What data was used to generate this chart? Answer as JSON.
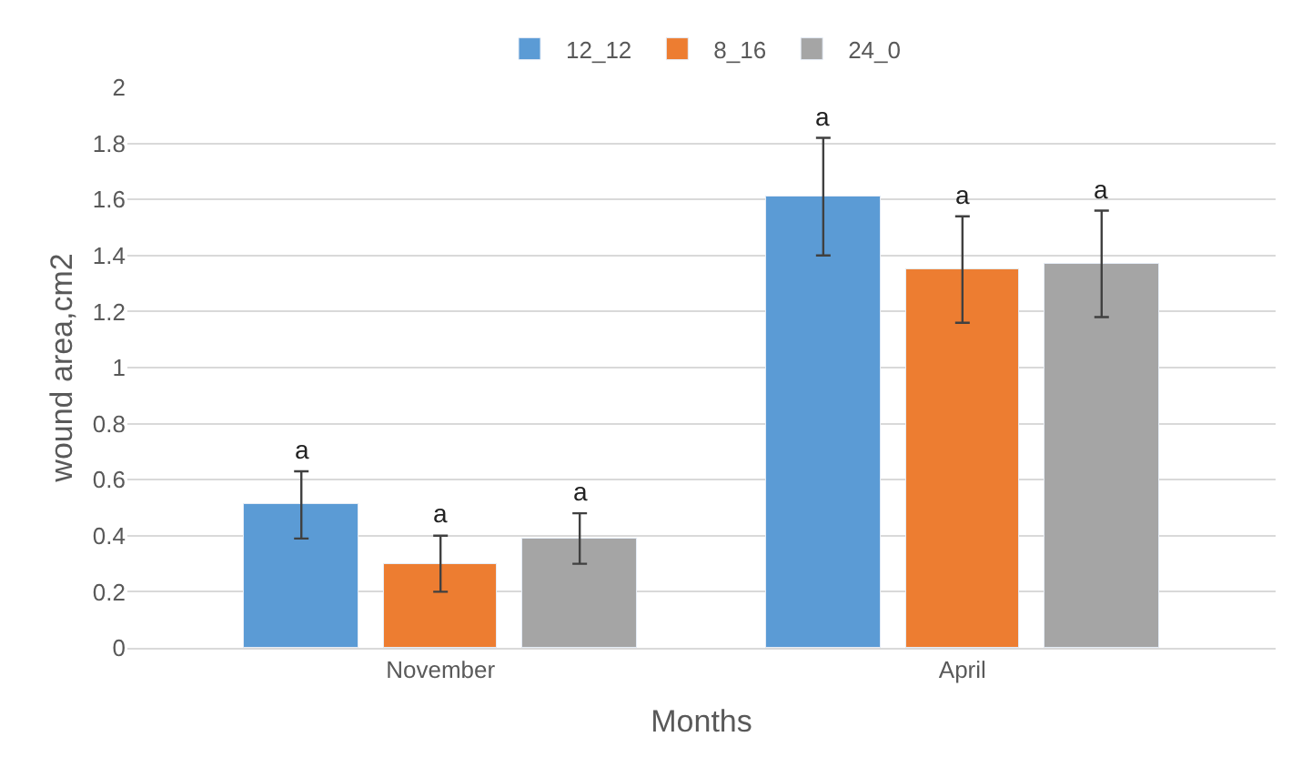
{
  "chart_data": {
    "type": "bar",
    "xlabel": "Months",
    "ylabel": "wound area,cm2",
    "categories": [
      "November",
      "April"
    ],
    "series": [
      {
        "name": "12_12",
        "color": "#5b9bd5",
        "values": [
          0.51,
          1.61
        ],
        "errors": [
          0.12,
          0.21
        ]
      },
      {
        "name": "8_16",
        "color": "#ed7d31",
        "values": [
          0.3,
          1.35
        ],
        "errors": [
          0.1,
          0.19
        ]
      },
      {
        "name": "24_0",
        "color": "#a5a5a5",
        "values": [
          0.39,
          1.37
        ],
        "errors": [
          0.09,
          0.19
        ]
      }
    ],
    "annotations": [
      "a",
      "a",
      "a",
      "a",
      "a",
      "a"
    ],
    "ylim": [
      0,
      2
    ],
    "yticks": [
      0,
      0.2,
      0.4,
      0.6,
      0.8,
      1,
      1.2,
      1.4,
      1.6,
      1.8,
      2
    ],
    "grid": "y",
    "legend": "top"
  }
}
